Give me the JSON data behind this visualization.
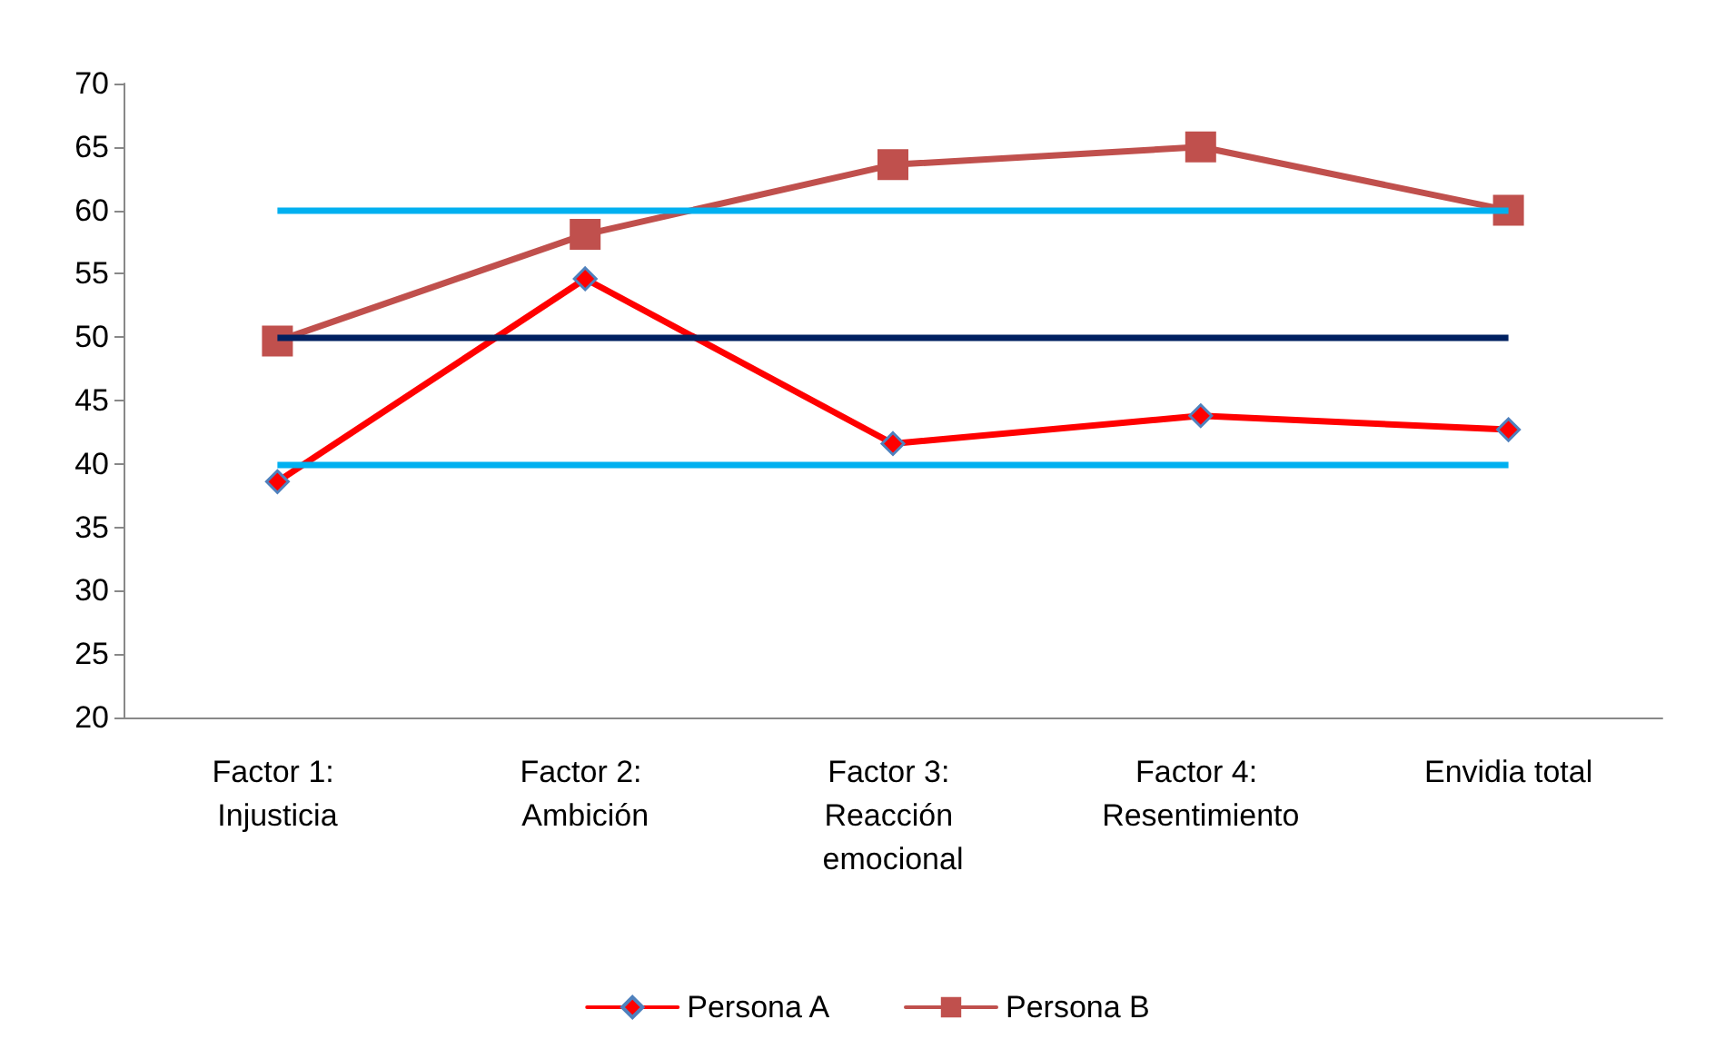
{
  "chart_data": {
    "type": "line",
    "categories": [
      "Factor 1: Injusticia",
      "Factor 2: Ambición",
      "Factor 3: Reacción emocional",
      "Factor 4: Resentimiento",
      "Envidia total"
    ],
    "series": [
      {
        "name": "Persona A",
        "color": "#ff0000",
        "marker": "diamond",
        "values": [
          38.6,
          54.6,
          41.6,
          43.8,
          42.7
        ]
      },
      {
        "name": "Persona B",
        "color": "#c0504d",
        "marker": "square",
        "values": [
          49.7,
          58.1,
          63.6,
          65,
          60
        ]
      }
    ],
    "ref_lines": [
      {
        "axis": "y",
        "value": 60,
        "color": "#00b0f0"
      },
      {
        "axis": "y",
        "value": 50,
        "color": "#002060"
      },
      {
        "axis": "y",
        "value": 40,
        "color": "#00b0f0"
      }
    ],
    "ylim": [
      20,
      70
    ],
    "yticks": [
      20,
      25,
      30,
      35,
      40,
      45,
      50,
      55,
      60,
      65,
      70
    ],
    "grid": false,
    "legend": "bottom"
  }
}
